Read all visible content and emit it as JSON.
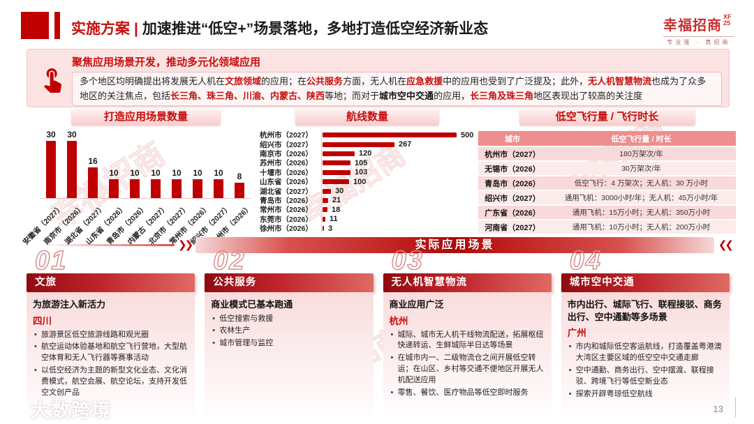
{
  "header": {
    "section_label": "实施方案",
    "divider": "|",
    "title": "加速推进“低空+”场景落地，多地打造低空经济新业态",
    "logo": {
      "name": "幸福招商",
      "mark": "XF25",
      "tagline": "专业强 · 真招商"
    }
  },
  "banner": {
    "title": "聚焦应用场景开发，推动多元化领域应用",
    "icon": "touch-tap-icon",
    "segments": [
      {
        "text": "多个地区均明确提出将发展无人机在",
        "style": "normal"
      },
      {
        "text": "文旅领域",
        "style": "red"
      },
      {
        "text": "的应用；在",
        "style": "normal"
      },
      {
        "text": "公共服务",
        "style": "red"
      },
      {
        "text": "方面，无人机在",
        "style": "normal"
      },
      {
        "text": "应急救援",
        "style": "red"
      },
      {
        "text": "中的应用也受到了广泛提及；此外，",
        "style": "normal"
      },
      {
        "text": "无人机智慧物流",
        "style": "red"
      },
      {
        "text": "也成为了众多地区的关注焦点，包括",
        "style": "normal"
      },
      {
        "text": "长三角、珠三角、川渝、内蒙古、陕西",
        "style": "red"
      },
      {
        "text": "等地；而对于",
        "style": "normal"
      },
      {
        "text": "城市空中交通",
        "style": "dark-bold"
      },
      {
        "text": "的应用，",
        "style": "normal"
      },
      {
        "text": "长三角及珠三角",
        "style": "red"
      },
      {
        "text": "地区表现出了较高的关注度",
        "style": "normal"
      }
    ]
  },
  "chart_data": [
    {
      "type": "bar",
      "title": "打造应用场景数量",
      "categories": [
        "安徽省（2027）",
        "南京市（2026）",
        "湖北省（2027）",
        "山东省（2026）",
        "青岛市（2026）",
        "内蒙古（2027）",
        "北京市（2027）",
        "常州市（2026）",
        "绍兴市（2027）",
        "徐州市（2026）"
      ],
      "values": [
        30,
        30,
        16,
        10,
        10,
        10,
        10,
        10,
        10,
        8
      ],
      "ylim": [
        0,
        30
      ],
      "bar_color": "#bf0000",
      "grid": false,
      "legend": "none"
    },
    {
      "type": "bar",
      "orientation": "horizontal",
      "title": "航线数量",
      "categories": [
        "杭州市（2027）",
        "绍兴市（2027）",
        "南京市（2026）",
        "苏州市（2026）",
        "十堰市（2026）",
        "山东省（2026）",
        "湖北省（2027）",
        "青岛市（2026）",
        "常州市（2026）",
        "东莞市（2026）",
        "徐州市（2026）"
      ],
      "values": [
        500,
        267,
        120,
        105,
        103,
        100,
        30,
        21,
        18,
        11,
        3
      ],
      "xlim": [
        0,
        500
      ],
      "bar_color": "#bf0000",
      "grid": false,
      "legend": "none"
    },
    {
      "type": "table",
      "title": "低空飞行量 / 飞行时长",
      "columns": [
        "城市",
        "低空飞行量 / 时长"
      ],
      "rows": [
        [
          "杭州市（2027）",
          "180万架次/年"
        ],
        [
          "无锡市（2026）",
          "30万架次/年"
        ],
        [
          "青岛市（2026）",
          "低空飞行：4 万架次；无人机：30 万小时"
        ],
        [
          "绍兴市（2027）",
          "通用飞机：3000小时/年；无人机：45万小时/年"
        ],
        [
          "广东省（2026）",
          "通用飞机：15万小时；无人机：350万小时"
        ],
        [
          "河南省（2027）",
          "通用飞机：10万小时；无人机：200万小时"
        ]
      ]
    }
  ],
  "scenario_banner": {
    "label": "实际应用场景",
    "left_arrows": "❯❯",
    "right_arrows": "❮❮"
  },
  "cards": [
    {
      "number": "01",
      "header": "文旅",
      "subtitle": "为旅游注入新活力",
      "region": "四川",
      "bullets": [
        "旅游景区低空旅游线路和观光圈",
        "航空运动体验基地和航空飞行营地，大型航空体育和无人飞行器等赛事活动",
        "以低空经济为主题的新型文化业态、文化消费模式，航空会展、航空论坛，支持开发低空文创产品"
      ]
    },
    {
      "number": "02",
      "header": "公共服务",
      "subtitle": "商业模式已基本跑通",
      "region": "",
      "bullets": [
        "低空搜索与救援",
        "农林生产",
        "城市管理与监控"
      ]
    },
    {
      "number": "03",
      "header": "无人机智慧物流",
      "subtitle": "商业应用广泛",
      "region": "杭州",
      "bullets": [
        "城际、城市无人机干线物流配送，拓展枢纽快递转运、生鲜城际半日达等场景",
        "在城市内一、二级物流仓之间开展低空转运；在山区、乡村等交通不便地区开展无人机配送应用",
        "零售、餐饮、医疗物品等低空即时服务"
      ]
    },
    {
      "number": "04",
      "header": "城市空中交通",
      "subtitle": "市内出行、城际飞行、联程接驳、商务出行、空中通勤等多场景",
      "region": "广州",
      "bullets": [
        "市内和城际低空客运航线，打造覆盖粤港澳大湾区主要区域的低空空中交通走廊",
        "空中通勤、商务出行、空中摆渡、联程接驳、跨境飞行等低空新业态",
        "探索开辟粤琼低空航线"
      ]
    }
  ],
  "footer": {
    "page_number": "13",
    "watermark": "大数跨境"
  },
  "watermark_text": "幸福招商",
  "colors": {
    "accent_red": "#c00000",
    "banner_bg": "#fbe3e3",
    "table_header_bg": "#ee8e8e",
    "row_odd": "#f9d9d9",
    "row_even": "#fcebeb"
  }
}
